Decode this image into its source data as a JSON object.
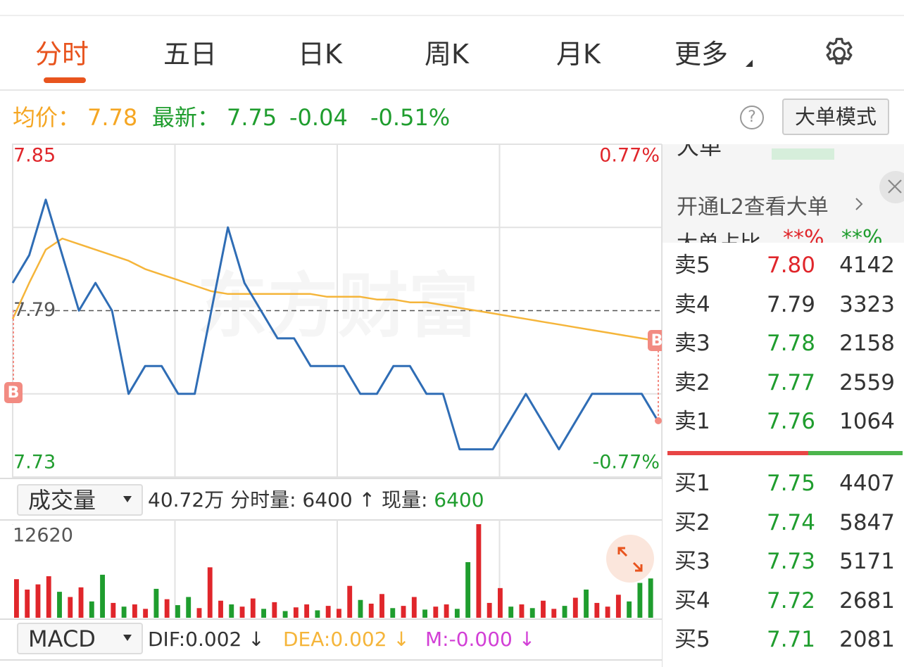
{
  "tabs": [
    "分时",
    "五日",
    "日K",
    "周K",
    "月K",
    "更多"
  ],
  "info": {
    "avg_label": "均价：",
    "avg": "7.78",
    "latest_label": "最新：",
    "latest": "7.75",
    "change": "-0.04",
    "change_pct": "-0.51%",
    "help": "?",
    "mode_button": "大单模式"
  },
  "right_panel": {
    "big_order_title": "大单",
    "l2_link": "开通L2查看大单",
    "big_ratio_label": "大单占比",
    "big_ratio_buy": "**%",
    "big_ratio_sell": "**%"
  },
  "order_book": {
    "sell": [
      {
        "label": "卖5",
        "price": "7.80",
        "volume": 4142,
        "color": "#e0262b"
      },
      {
        "label": "卖4",
        "price": "7.79",
        "volume": 3323,
        "color": "#333333"
      },
      {
        "label": "卖3",
        "price": "7.78",
        "volume": 2158,
        "color": "#1f9d2e"
      },
      {
        "label": "卖2",
        "price": "7.77",
        "volume": 2559,
        "color": "#1f9d2e"
      },
      {
        "label": "卖1",
        "price": "7.76",
        "volume": 1064,
        "color": "#1f9d2e"
      }
    ],
    "buy": [
      {
        "label": "买1",
        "price": "7.75",
        "volume": 4407,
        "color": "#1f9d2e"
      },
      {
        "label": "买2",
        "price": "7.74",
        "volume": 5847,
        "color": "#1f9d2e"
      },
      {
        "label": "买3",
        "price": "7.73",
        "volume": 5171,
        "color": "#1f9d2e"
      },
      {
        "label": "买4",
        "price": "7.72",
        "volume": 2681,
        "color": "#1f9d2e"
      },
      {
        "label": "买5",
        "price": "7.71",
        "volume": 2081,
        "color": "#1f9d2e"
      }
    ]
  },
  "volume_header": {
    "selector": "成交量",
    "total": "40.72万",
    "period_label": "分时量:",
    "period_value": "6400 ↑",
    "current_label": "现量:",
    "current_value": "6400"
  },
  "macd_header": {
    "selector": "MACD",
    "dif": "DIF:0.002 ↓",
    "dea": "DEA:0.002 ↓",
    "m": "M:-0.000 ↓"
  },
  "chart_data": [
    {
      "type": "line",
      "watermark": "东方财富",
      "markers": [
        "B",
        "B"
      ],
      "up_color": "#e0262b",
      "down_color": "#1f9d2e",
      "baseline": 7.79,
      "series": [
        {
          "color": "#2f6db5",
          "values": [
            7.8,
            7.81,
            7.83,
            7.81,
            7.79,
            7.8,
            7.79,
            7.76,
            7.77,
            7.77,
            7.76,
            7.76,
            7.79,
            7.82,
            7.8,
            7.79,
            7.78,
            7.78,
            7.77,
            7.77,
            7.77,
            7.76,
            7.76,
            7.77,
            7.77,
            7.76,
            7.76,
            7.74,
            7.74,
            7.74,
            7.75,
            7.76,
            7.75,
            7.74,
            7.75,
            7.76,
            7.76,
            7.76,
            7.76,
            7.75
          ]
        },
        {
          "color": "#f5b53a",
          "values": [
            7.787,
            7.8,
            7.812,
            7.816,
            7.814,
            7.812,
            7.81,
            7.808,
            7.805,
            7.803,
            7.801,
            7.799,
            7.797,
            7.796,
            7.796,
            7.796,
            7.796,
            7.796,
            7.796,
            7.795,
            7.795,
            7.795,
            7.794,
            7.794,
            7.793,
            7.793,
            7.792,
            7.791,
            7.79,
            7.789,
            7.788,
            7.787,
            7.786,
            7.785,
            7.784,
            7.783,
            7.782,
            7.781,
            7.78,
            7.779
          ]
        }
      ],
      "ylim": [
        7.73,
        7.85
      ],
      "yticks": [
        7.85,
        7.79,
        7.73
      ],
      "y2lim": [
        -0.77,
        0.77
      ],
      "y2ticks": [
        {
          "value": 0.77,
          "label": "0.77%"
        },
        {
          "value": -0.77,
          "label": "-0.77%"
        }
      ]
    },
    {
      "type": "bar",
      "ylim": [
        0,
        12620
      ],
      "yticks": [
        12620
      ],
      "values": [
        5200,
        3800,
        4500,
        5600,
        3500,
        2800,
        4100,
        2200,
        5800,
        2000,
        1500,
        1800,
        1200,
        3900,
        2500,
        1700,
        2800,
        1300,
        6800,
        2300,
        1800,
        1500,
        2600,
        1200,
        2100,
        900,
        1400,
        1800,
        1000,
        1600,
        1200,
        4300,
        2400,
        1900,
        3200,
        1300,
        1600,
        2800,
        1100,
        1500,
        1800,
        1200,
        7500,
        12620,
        2000,
        4000,
        1500,
        1800,
        1300,
        2300,
        1200,
        1600,
        2700,
        3800,
        2000,
        1500,
        3100,
        2200,
        4700,
        5300
      ],
      "colors": [
        "#e0262b",
        "#e0262b",
        "#e0262b",
        "#e0262b",
        "#1f9d2e",
        "#e0262b",
        "#e0262b",
        "#1f9d2e",
        "#1f9d2e",
        "#e0262b",
        "#1f9d2e",
        "#e0262b",
        "#e0262b",
        "#1f9d2e",
        "#e0262b",
        "#1f9d2e",
        "#1f9d2e",
        "#e0262b",
        "#e0262b",
        "#e0262b",
        "#1f9d2e",
        "#e0262b",
        "#e0262b",
        "#1f9d2e",
        "#e0262b",
        "#1f9d2e",
        "#e0262b",
        "#e0262b",
        "#1f9d2e",
        "#e0262b",
        "#e0262b",
        "#e0262b",
        "#1f9d2e",
        "#e0262b",
        "#e0262b",
        "#1f9d2e",
        "#e0262b",
        "#e0262b",
        "#1f9d2e",
        "#e0262b",
        "#e0262b",
        "#1f9d2e",
        "#1f9d2e",
        "#e0262b",
        "#e0262b",
        "#e0262b",
        "#1f9d2e",
        "#e0262b",
        "#1f9d2e",
        "#e0262b",
        "#e0262b",
        "#1f9d2e",
        "#e0262b",
        "#1f9d2e",
        "#e0262b",
        "#e0262b",
        "#e0262b",
        "#1f9d2e",
        "#1f9d2e",
        "#1f9d2e"
      ]
    }
  ]
}
